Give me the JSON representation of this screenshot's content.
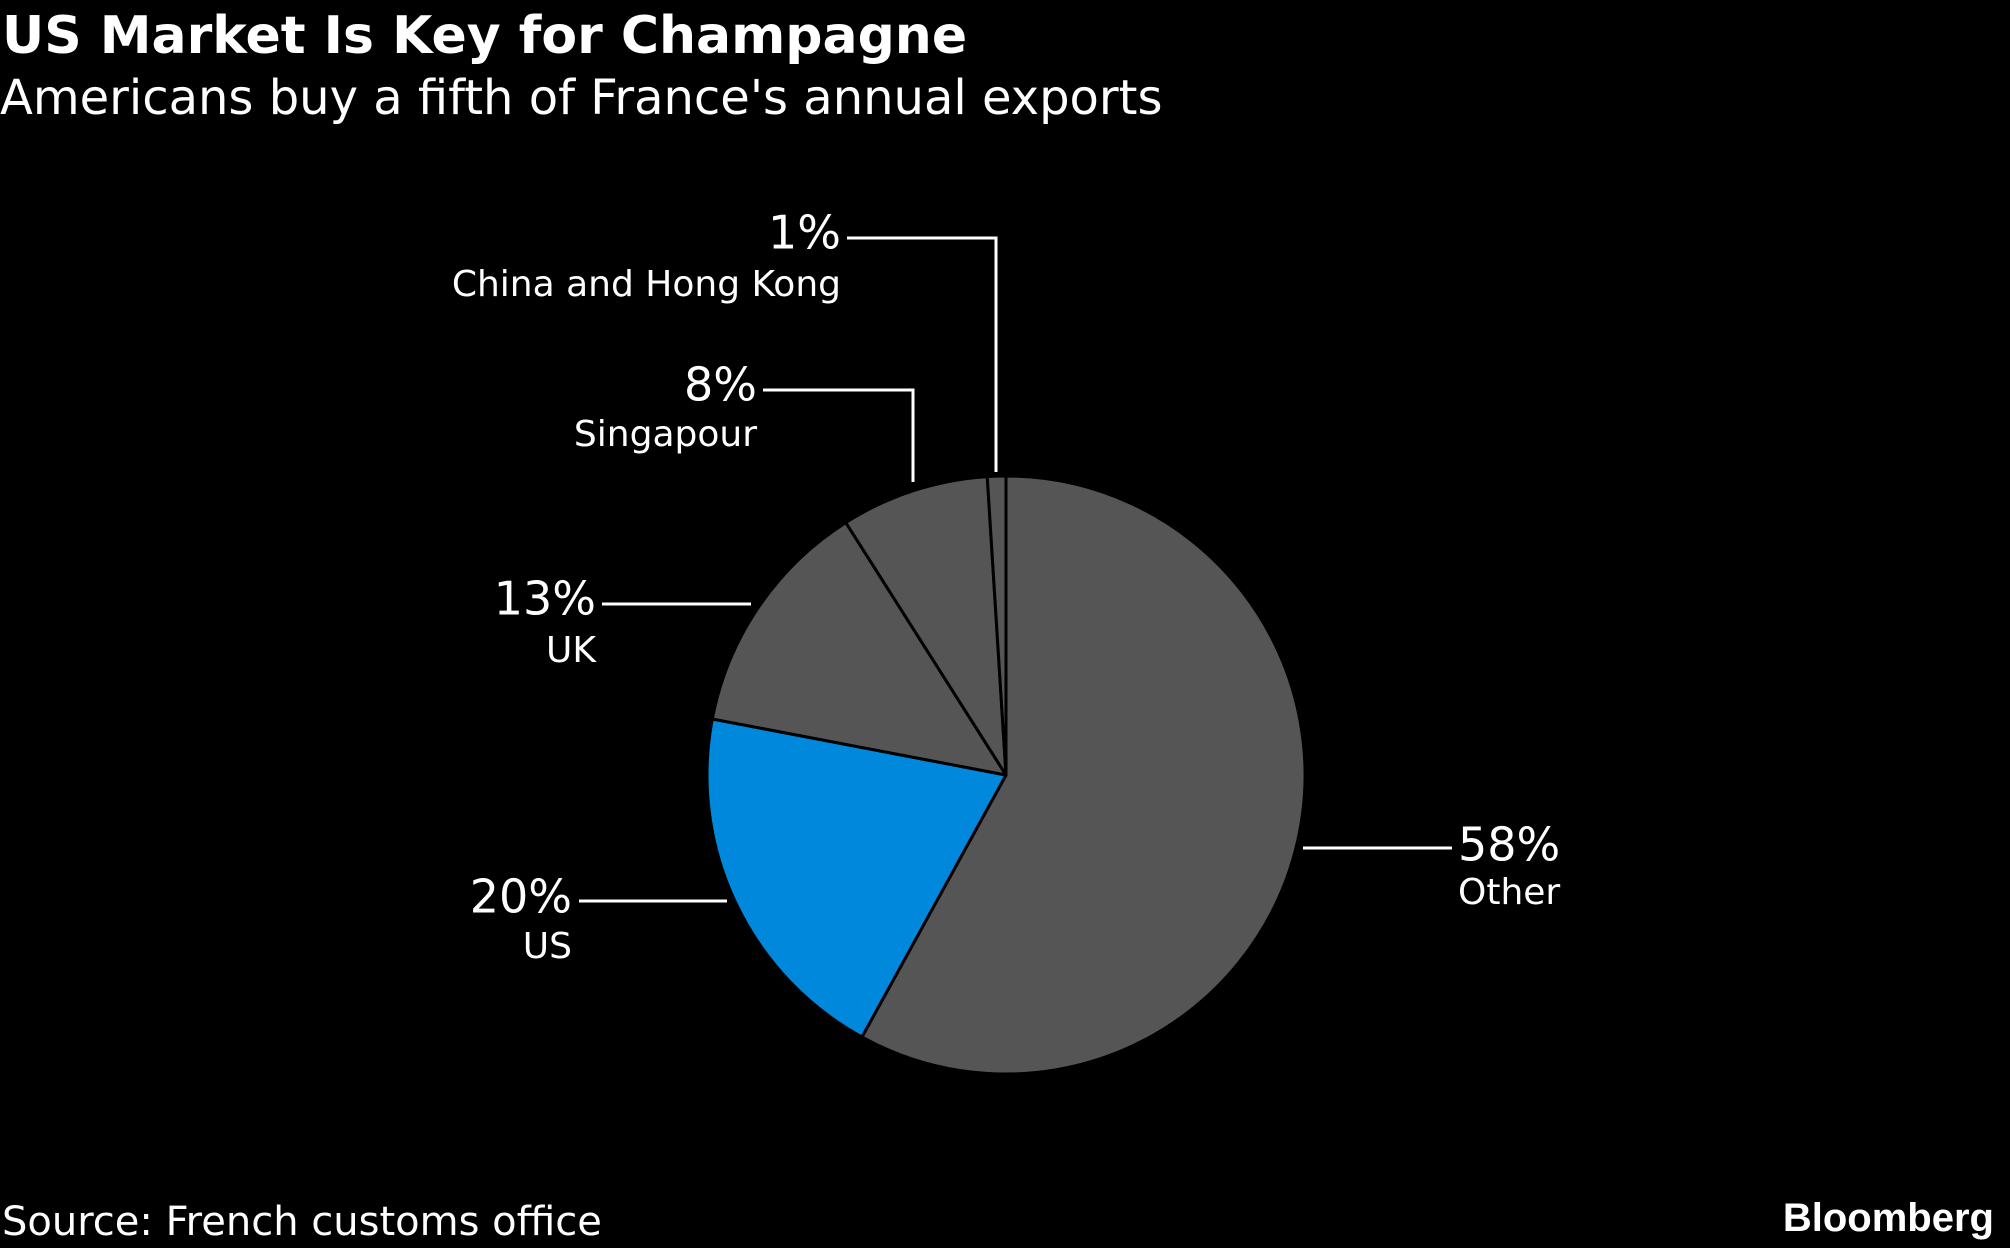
{
  "header": {
    "title": "US Market Is Key for Champagne",
    "subtitle": "Americans buy a fifth of France's annual exports"
  },
  "footer": {
    "source": "Source: French customs office",
    "brand": "Bloomberg"
  },
  "chart_data": {
    "type": "pie",
    "title": "US Market Is Key for Champagne",
    "subtitle": "Americans buy a fifth of France's annual exports",
    "start_angle_deg": 0,
    "direction": "clockwise",
    "slices": [
      {
        "label": "Other",
        "value": 58,
        "value_label": "58%",
        "color": "#555555"
      },
      {
        "label": "US",
        "value": 20,
        "value_label": "20%",
        "color": "#0088DD"
      },
      {
        "label": "UK",
        "value": 13,
        "value_label": "13%",
        "color": "#555555"
      },
      {
        "label": "Singapour",
        "value": 8,
        "value_label": "8%",
        "color": "#555555"
      },
      {
        "label": "China and Hong Kong",
        "value": 1,
        "value_label": "1%",
        "color": "#555555"
      }
    ],
    "colors": {
      "background": "#000000",
      "text": "#ffffff",
      "slice_border": "#000000",
      "leader_line": "#ffffff"
    }
  }
}
